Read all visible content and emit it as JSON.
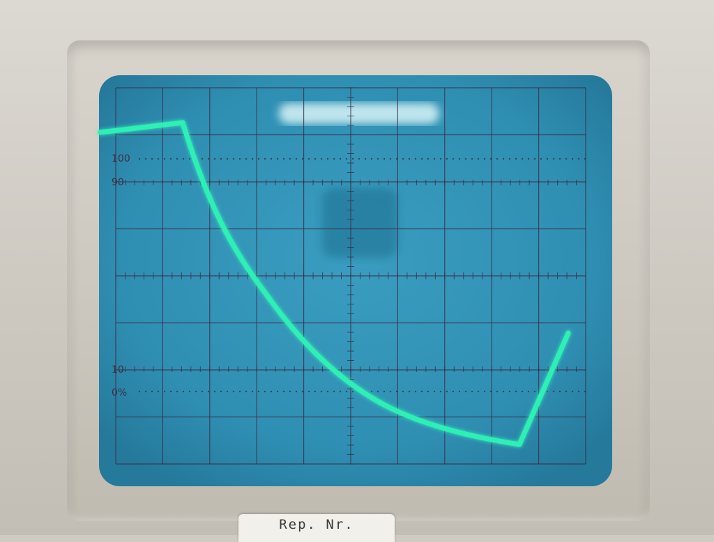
{
  "device": "oscilloscope",
  "screen": {
    "scale_labels": {
      "top": "100",
      "upper": "90",
      "lower": "10",
      "bottom": "0%"
    },
    "graticule": {
      "major_columns": 10,
      "major_rows": 8
    },
    "trace_color": "#2ef0b4",
    "screen_color": "#2f90b4",
    "grid_color": "#3b2f45"
  },
  "label_plate": {
    "text": "Rep. Nr."
  },
  "icons": {
    "trace": "waveform-trace-icon",
    "glare": "screen-glare-icon"
  }
}
